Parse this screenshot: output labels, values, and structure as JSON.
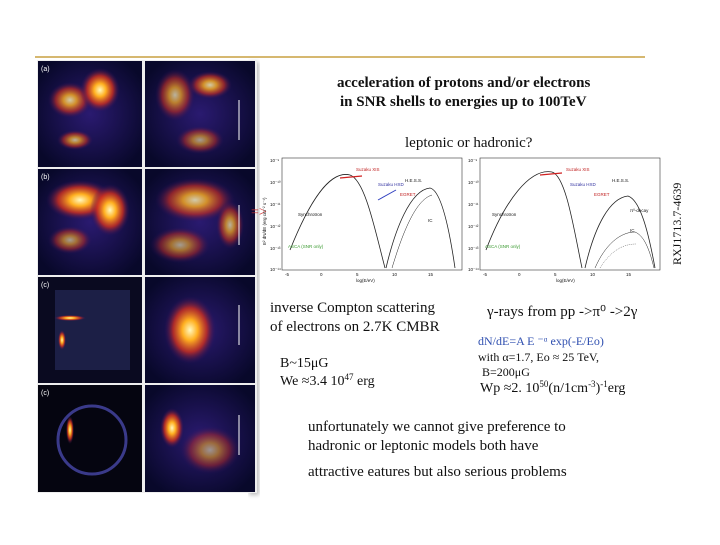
{
  "images": {
    "labels": [
      "(a)",
      "(b)",
      "(c)",
      "(c)"
    ]
  },
  "title": {
    "line1": "acceleration  of  protons  and/or electrons",
    "line2": "in  SNR shells  to energies up to 100TeV"
  },
  "question": "leptonic or hadronic?",
  "arrow": "=>",
  "object_name": "RXJ1713.7-4639",
  "plots": {
    "left": {
      "labels": [
        "Suzaku XIS",
        "Suzaku HXD",
        "H.E.S.S.",
        "EGRET",
        "Synchrotron",
        "ASCA (SNR only)",
        "IC"
      ],
      "xticks": [
        "-5",
        "0",
        "5",
        "10",
        "15"
      ],
      "yticks": [
        "10⁻⁹",
        "10⁻¹⁰",
        "10⁻¹¹",
        "10⁻¹²",
        "10⁻¹³",
        "10⁻¹⁴"
      ],
      "xlabel": "log(E/eV)",
      "ylabel": "E² dN/dE (erg cm⁻² s⁻¹)"
    },
    "right": {
      "labels": [
        "Suzaku XIS",
        "Suzaku HXD",
        "H.E.S.S.",
        "EGRET",
        "Synchrotron",
        "ASCA (SNR only)",
        "π⁰-decay",
        "IC"
      ],
      "xticks": [
        "-5",
        "0",
        "5",
        "10",
        "15"
      ],
      "yticks": [
        "10⁻⁹",
        "10⁻¹⁰",
        "10⁻¹¹",
        "10⁻¹²",
        "10⁻¹³",
        "10⁻¹⁴"
      ],
      "xlabel": "log(E/eV)"
    }
  },
  "leptonic": {
    "line1": "inverse Compton scattering",
    "line2": "of electrons on 2.7K CMBR",
    "field": "B~15μG",
    "energy_pre": "We ≈3.4 10",
    "energy_exp": "47",
    "energy_post": " erg"
  },
  "hadronic": {
    "line1": "γ-rays  from  pp ->π⁰ ->2γ",
    "formula": "dN/dE=A E ⁻ᵅ exp(-E/Eo)",
    "params": "with α=1.7, Eo ≈ 25 TeV,",
    "field": "B=200μG",
    "energy_pre": "Wp ≈2. 10",
    "energy_exp1": "50",
    "energy_mid": "(n/1cm",
    "energy_exp2": "-3",
    "energy_mid2": ")",
    "energy_exp3": "-1",
    "energy_post": "erg"
  },
  "conclusion": {
    "line1": "unfortunately we cannot  give preference to",
    "line2": "hadronic or leptonic models     both   have",
    "line3": "attractive  eatures but also serious problems"
  }
}
